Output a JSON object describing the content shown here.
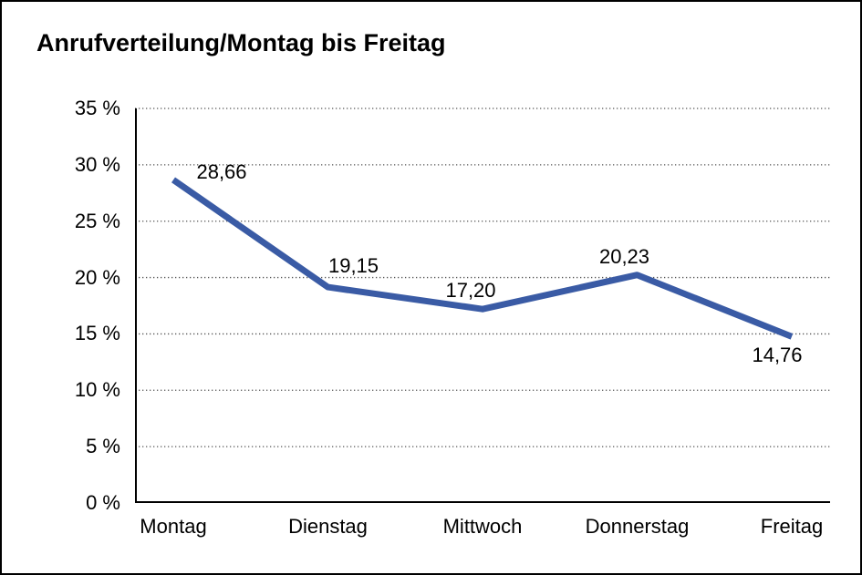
{
  "chart_data": {
    "type": "line",
    "title": "Anrufverteilung/Montag bis Freitag",
    "categories": [
      "Montag",
      "Dienstag",
      "Mittwoch",
      "Donnerstag",
      "Freitag"
    ],
    "values": [
      28.66,
      19.15,
      17.2,
      20.23,
      14.76
    ],
    "value_labels": [
      "28,66",
      "19,15",
      "17,20",
      "20,23",
      "14,76"
    ],
    "xlabel": "",
    "ylabel": "",
    "ylim": [
      0,
      35
    ],
    "yticks": [
      0,
      5,
      10,
      15,
      20,
      25,
      30,
      35
    ],
    "ytick_labels": [
      "0 %",
      "5 %",
      "10 %",
      "15 %",
      "20 %",
      "25 %",
      "30 %",
      "35 %"
    ],
    "grid": true,
    "gridline_style": "dotted",
    "legend_position": "none",
    "line_color": "#3A5BA5",
    "axis_color": "#000000",
    "gridline_color": "#555555",
    "text_color": "#000000",
    "background_color": "#ffffff"
  }
}
